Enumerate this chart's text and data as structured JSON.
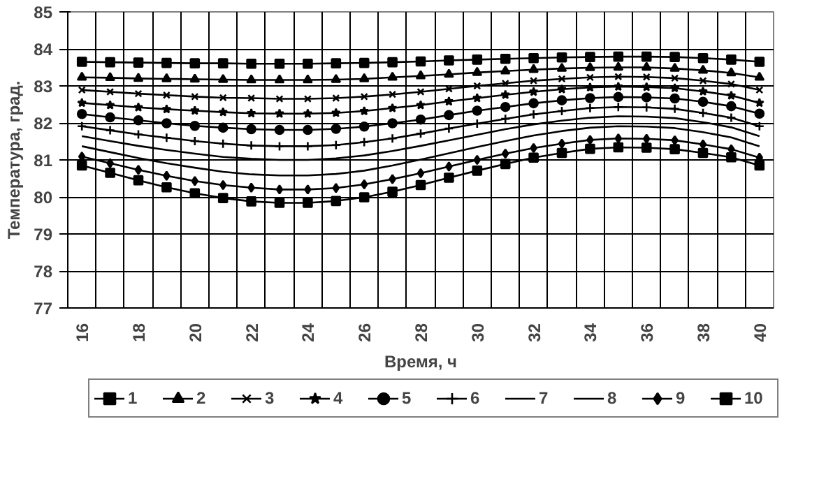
{
  "chart_data": {
    "type": "line",
    "xlabel": "Время, ч",
    "ylabel": "Температура, град.",
    "categories": [
      "16",
      null,
      "18",
      null,
      "20",
      null,
      "22",
      null,
      "24",
      null,
      "26",
      null,
      "28",
      null,
      "30",
      null,
      "32",
      null,
      "34",
      null,
      "36",
      null,
      "38",
      null,
      "40"
    ],
    "ylim": [
      77,
      85
    ],
    "yticks": [
      77,
      78,
      79,
      80,
      81,
      82,
      83,
      84,
      85
    ],
    "grid": true,
    "legend": "bottom",
    "line_style": "solid",
    "series": [
      {
        "name": "1",
        "color": "#000000",
        "marker": "square",
        "values": [
          83.65,
          83.64,
          83.63,
          83.62,
          83.61,
          83.61,
          83.6,
          83.6,
          83.6,
          83.61,
          83.62,
          83.64,
          83.66,
          83.69,
          83.71,
          83.73,
          83.75,
          83.77,
          83.78,
          83.79,
          83.79,
          83.78,
          83.75,
          83.71,
          83.65
        ]
      },
      {
        "name": "2",
        "color": "#000000",
        "marker": "triangle",
        "values": [
          83.23,
          83.22,
          83.2,
          83.19,
          83.18,
          83.17,
          83.16,
          83.16,
          83.16,
          83.17,
          83.19,
          83.23,
          83.27,
          83.31,
          83.36,
          83.4,
          83.44,
          83.47,
          83.49,
          83.5,
          83.5,
          83.47,
          83.42,
          83.35,
          83.23
        ]
      },
      {
        "name": "3",
        "color": "#000000",
        "marker": "x",
        "values": [
          82.89,
          82.84,
          82.79,
          82.75,
          82.71,
          82.68,
          82.67,
          82.65,
          82.65,
          82.67,
          82.71,
          82.77,
          82.84,
          82.92,
          83.0,
          83.07,
          83.14,
          83.19,
          83.23,
          83.25,
          83.24,
          83.21,
          83.14,
          83.05,
          82.89
        ]
      },
      {
        "name": "4",
        "color": "#000000",
        "marker": "star",
        "values": [
          82.54,
          82.48,
          82.42,
          82.37,
          82.33,
          82.29,
          82.26,
          82.25,
          82.25,
          82.27,
          82.32,
          82.4,
          82.48,
          82.58,
          82.67,
          82.76,
          82.84,
          82.91,
          82.96,
          82.98,
          82.97,
          82.94,
          82.85,
          82.74,
          82.54
        ]
      },
      {
        "name": "5",
        "color": "#000000",
        "marker": "circle",
        "values": [
          82.24,
          82.15,
          82.07,
          81.99,
          81.92,
          81.87,
          81.83,
          81.81,
          81.81,
          81.84,
          81.9,
          81.99,
          82.09,
          82.21,
          82.33,
          82.43,
          82.53,
          82.61,
          82.67,
          82.7,
          82.69,
          82.66,
          82.57,
          82.45,
          82.25
        ]
      },
      {
        "name": "6",
        "color": "#000000",
        "marker": "cross",
        "values": [
          81.91,
          81.8,
          81.69,
          81.6,
          81.51,
          81.44,
          81.39,
          81.37,
          81.37,
          81.4,
          81.48,
          81.58,
          81.71,
          81.85,
          81.98,
          82.11,
          82.23,
          82.32,
          82.4,
          82.43,
          82.42,
          82.38,
          82.27,
          82.14,
          81.91
        ]
      },
      {
        "name": "7",
        "color": "#000000",
        "marker": "none",
        "values": [
          81.64,
          81.51,
          81.38,
          81.27,
          81.17,
          81.08,
          81.03,
          81.0,
          81.0,
          81.04,
          81.12,
          81.24,
          81.38,
          81.53,
          81.68,
          81.83,
          81.96,
          82.06,
          82.14,
          82.18,
          82.17,
          82.13,
          82.02,
          81.88,
          81.64
        ]
      },
      {
        "name": "8",
        "color": "#000000",
        "marker": "none",
        "values": [
          81.37,
          81.21,
          81.05,
          80.91,
          80.79,
          80.68,
          80.61,
          80.58,
          80.58,
          80.62,
          80.71,
          80.85,
          81.01,
          81.18,
          81.35,
          81.51,
          81.66,
          81.78,
          81.87,
          81.91,
          81.9,
          81.86,
          81.75,
          81.61,
          81.37
        ]
      },
      {
        "name": "9",
        "color": "#000000",
        "marker": "diamond",
        "values": [
          81.09,
          80.91,
          80.73,
          80.57,
          80.43,
          80.32,
          80.25,
          80.2,
          80.2,
          80.24,
          80.34,
          80.48,
          80.64,
          80.82,
          81.0,
          81.17,
          81.32,
          81.44,
          81.54,
          81.58,
          81.57,
          81.53,
          81.42,
          81.29,
          81.06
        ]
      },
      {
        "name": "10",
        "color": "#000000",
        "marker": "square",
        "values": [
          80.85,
          80.65,
          80.45,
          80.26,
          80.1,
          79.97,
          79.88,
          79.84,
          79.84,
          79.89,
          79.99,
          80.14,
          80.32,
          80.52,
          80.71,
          80.89,
          81.06,
          81.19,
          81.3,
          81.34,
          81.33,
          81.29,
          81.19,
          81.07,
          80.85
        ]
      }
    ]
  }
}
